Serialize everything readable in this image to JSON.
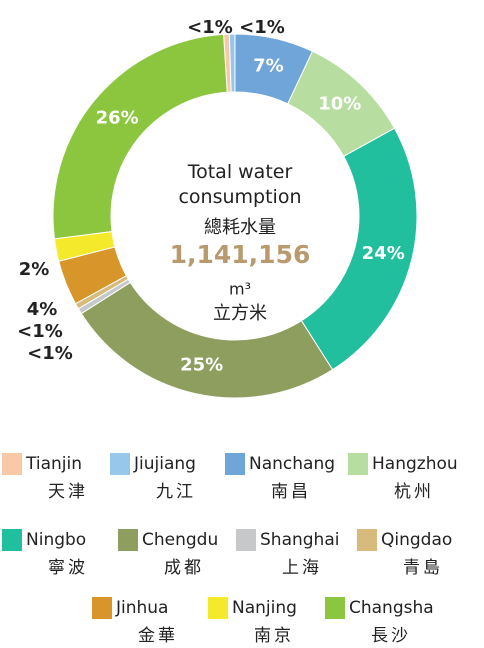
{
  "chart_data": {
    "type": "donut",
    "center_title": "Total water consumption",
    "center_title_zh": "總耗水量",
    "center_value": "1,141,156",
    "center_unit": "m³",
    "center_unit_zh": "立方米",
    "categories": [
      "Tianjin",
      "Jiujiang",
      "Nanchang",
      "Hangzhou",
      "Ningbo",
      "Chengdu",
      "Shanghai",
      "Qingdao",
      "Jinhua",
      "Nanjing",
      "Changsha"
    ],
    "categories_zh": [
      "天津",
      "九江",
      "南昌",
      "杭州",
      "寧波",
      "成都",
      "上海",
      "青島",
      "金華",
      "南京",
      "長沙"
    ],
    "values": [
      0.5,
      0.5,
      7,
      10,
      24,
      25,
      0.5,
      0.5,
      4,
      2,
      26
    ],
    "value_labels": [
      "<1%",
      "<1%",
      "7%",
      "10%",
      "24%",
      "25%",
      "<1%",
      "<1%",
      "4%",
      "2%",
      "26%"
    ],
    "colors": [
      "#f9c9a7",
      "#97c8ec",
      "#6fa5d8",
      "#b8dda1",
      "#22bf9e",
      "#8d9e5f",
      "#c7c8ca",
      "#d8bb7c",
      "#d8952a",
      "#f4ea2b",
      "#8cc63f"
    ]
  }
}
